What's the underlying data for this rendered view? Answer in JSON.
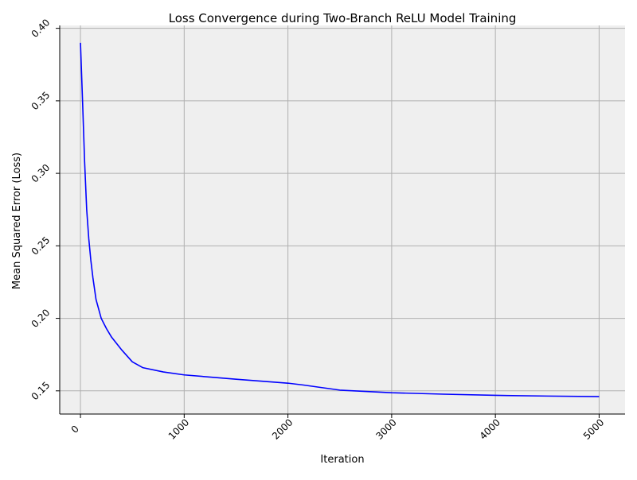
{
  "chart_data": {
    "type": "line",
    "title": "Loss Convergence during Two-Branch ReLU Model Training",
    "xlabel": "Iteration",
    "ylabel": "Mean Squared Error (Loss)",
    "xlim": [
      -200,
      5250
    ],
    "ylim": [
      0.134,
      0.402
    ],
    "xticks": [
      0,
      1000,
      2000,
      3000,
      4000,
      5000
    ],
    "xtick_labels": [
      "0",
      "1000",
      "2000",
      "3000",
      "4000",
      "5000"
    ],
    "yticks": [
      0.15,
      0.2,
      0.25,
      0.3,
      0.35,
      0.4
    ],
    "ytick_labels": [
      "0.15",
      "0.20",
      "0.25",
      "0.30",
      "0.35",
      "0.40"
    ],
    "grid": true,
    "background": "#efefef",
    "series": [
      {
        "color": "#0000ff",
        "x": [
          0,
          20,
          40,
          60,
          80,
          100,
          120,
          150,
          200,
          250,
          300,
          400,
          500,
          600,
          800,
          1000,
          1500,
          2000,
          2150,
          2300,
          2500,
          3000,
          3500,
          4000,
          4500,
          5000
        ],
        "y": [
          0.39,
          0.35,
          0.308,
          0.275,
          0.255,
          0.24,
          0.228,
          0.213,
          0.2,
          0.193,
          0.187,
          0.178,
          0.17,
          0.166,
          0.163,
          0.161,
          0.158,
          0.1553,
          0.154,
          0.1525,
          0.1505,
          0.1487,
          0.1477,
          0.1469,
          0.1464,
          0.146
        ]
      }
    ]
  }
}
